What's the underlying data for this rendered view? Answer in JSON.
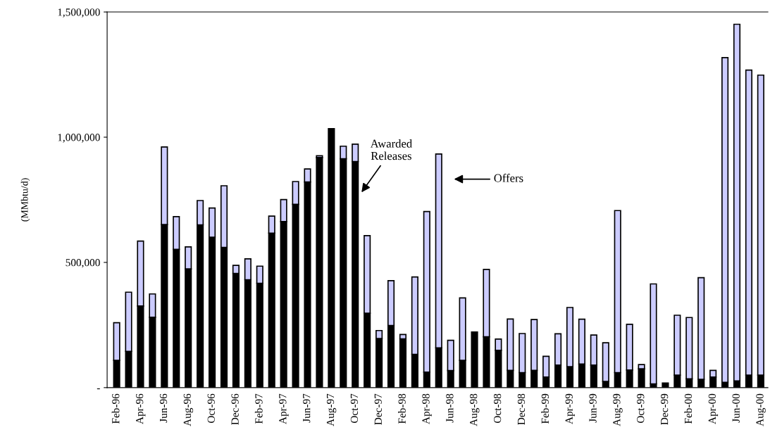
{
  "chart_data": {
    "type": "bar",
    "stacked": true,
    "ylabel": "(MMbtu/d)",
    "categories": [
      "Feb-96",
      null,
      "Apr-96",
      null,
      "Jun-96",
      null,
      "Aug-96",
      null,
      "Oct-96",
      null,
      "Dec-96",
      null,
      "Feb-97",
      null,
      "Apr-97",
      null,
      "Jun-97",
      null,
      "Aug-97",
      null,
      "Oct-97",
      null,
      "Dec-97",
      null,
      "Feb-98",
      null,
      "Apr-98",
      null,
      "Jun-98",
      null,
      "Aug-98",
      null,
      "Oct-98",
      null,
      "Dec-98",
      null,
      "Feb-99",
      null,
      "Apr-99",
      null,
      "Jun-99",
      null,
      "Aug-99",
      null,
      "Oct-99",
      null,
      "Dec-99",
      null,
      "Feb-00",
      null,
      "Apr-00",
      null,
      "Jun-00",
      null,
      "Aug-00"
    ],
    "series": [
      {
        "color": "#000000",
        "values": [
          109000,
          145000,
          326000,
          281000,
          651000,
          552000,
          474000,
          650000,
          601000,
          560000,
          456000,
          431000,
          417000,
          617000,
          663000,
          732000,
          821000,
          919000,
          1034000,
          914000,
          903000,
          297000,
          196000,
          248000,
          195000,
          133000,
          62000,
          159000,
          68000,
          109000,
          222000,
          203000,
          149000,
          69000,
          60000,
          69000,
          42000,
          90000,
          84000,
          94000,
          90000,
          25000,
          60000,
          70000,
          75000,
          15000,
          18000,
          50000,
          35000,
          33000,
          42000,
          21000,
          27000,
          50000,
          50000
        ]
      },
      {
        "color": "#ccccff",
        "values": [
          150000,
          236000,
          259000,
          93000,
          310000,
          131000,
          88000,
          97000,
          116000,
          246000,
          32000,
          83000,
          68000,
          68000,
          88000,
          91000,
          52000,
          7000,
          null,
          50000,
          69000,
          310000,
          32000,
          179000,
          17000,
          309000,
          641000,
          774000,
          121000,
          249000,
          null,
          269000,
          45000,
          205000,
          156000,
          203000,
          83000,
          125000,
          236000,
          179000,
          120000,
          154000,
          647000,
          183000,
          17000,
          399000,
          null,
          239000,
          245000,
          406000,
          27000,
          1297000,
          1424000,
          1218000,
          1198000
        ]
      }
    ],
    "ylim": [
      0,
      1500000
    ],
    "yticks": [
      {
        "value": 0,
        "label": "-"
      },
      {
        "value": 500000,
        "label": "500,000"
      },
      {
        "value": 1000000,
        "label": "1,000,000"
      },
      {
        "value": 1500000,
        "label": "1,500,000"
      }
    ],
    "annotations": [
      "Awarded\nReleases",
      "Offers"
    ],
    "grid": false,
    "legend": false
  }
}
